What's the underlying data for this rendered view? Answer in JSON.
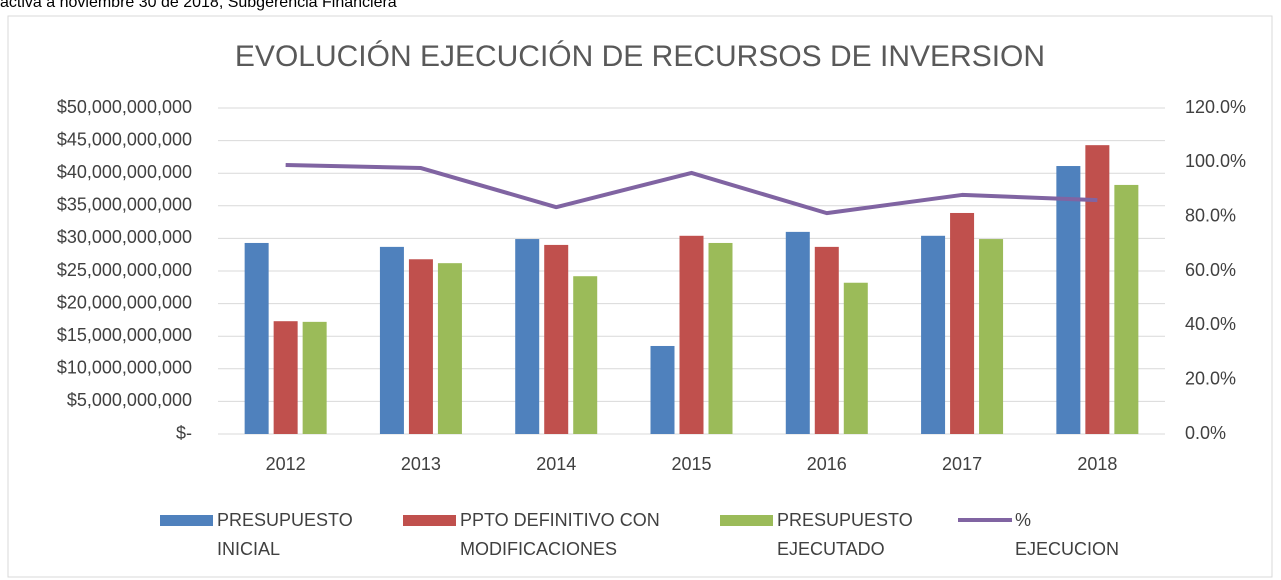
{
  "caption": "activa a noviembre 30 de 2018, Subgerencia Financiera",
  "chart_data": {
    "type": "bar",
    "title": "EVOLUCIÓN EJECUCIÓN DE RECURSOS DE INVERSION",
    "categories": [
      "2012",
      "2013",
      "2014",
      "2015",
      "2016",
      "2017",
      "2018"
    ],
    "series": [
      {
        "name": "PRESUPUESTO INICIAL",
        "color": "#4f81bd",
        "type": "bar",
        "values": [
          29300000000,
          28700000000,
          29900000000,
          13500000000,
          31000000000,
          30400000000,
          41100000000
        ]
      },
      {
        "name": "PPTO DEFINITIVO CON MODIFICACIONES",
        "color": "#c0504d",
        "type": "bar",
        "values": [
          17300000000,
          26800000000,
          29000000000,
          30400000000,
          28700000000,
          33900000000,
          44300000000
        ]
      },
      {
        "name": "PRESUPUESTO EJECUTADO",
        "color": "#9bbb59",
        "type": "bar",
        "values": [
          17200000000,
          26200000000,
          24200000000,
          29300000000,
          23200000000,
          29900000000,
          38200000000
        ]
      },
      {
        "name": "% EJECUCION",
        "color": "#8064a2",
        "type": "line",
        "axis": "y2",
        "values": [
          99.0,
          97.9,
          83.5,
          96.1,
          81.3,
          88.0,
          86.1
        ]
      }
    ],
    "ylim": [
      0,
      50000000000
    ],
    "yticks": [
      {
        "value": 0,
        "label": "$-"
      },
      {
        "value": 5000000000,
        "label": "$5,000,000,000"
      },
      {
        "value": 10000000000,
        "label": "$10,000,000,000"
      },
      {
        "value": 15000000000,
        "label": "$15,000,000,000"
      },
      {
        "value": 20000000000,
        "label": "$20,000,000,000"
      },
      {
        "value": 25000000000,
        "label": "$25,000,000,000"
      },
      {
        "value": 30000000000,
        "label": "$30,000,000,000"
      },
      {
        "value": 35000000000,
        "label": "$35,000,000,000"
      },
      {
        "value": 40000000000,
        "label": "$40,000,000,000"
      },
      {
        "value": 45000000000,
        "label": "$45,000,000,000"
      },
      {
        "value": 50000000000,
        "label": "$50,000,000,000"
      }
    ],
    "y2lim": [
      0,
      120
    ],
    "y2ticks": [
      {
        "value": 0,
        "label": "0.0%"
      },
      {
        "value": 20,
        "label": "20.0%"
      },
      {
        "value": 40,
        "label": "40.0%"
      },
      {
        "value": 60,
        "label": "60.0%"
      },
      {
        "value": 80,
        "label": "80.0%"
      },
      {
        "value": 100,
        "label": "100.0%"
      },
      {
        "value": 120,
        "label": "120.0%"
      }
    ],
    "grid": true,
    "legend": "bottom"
  }
}
